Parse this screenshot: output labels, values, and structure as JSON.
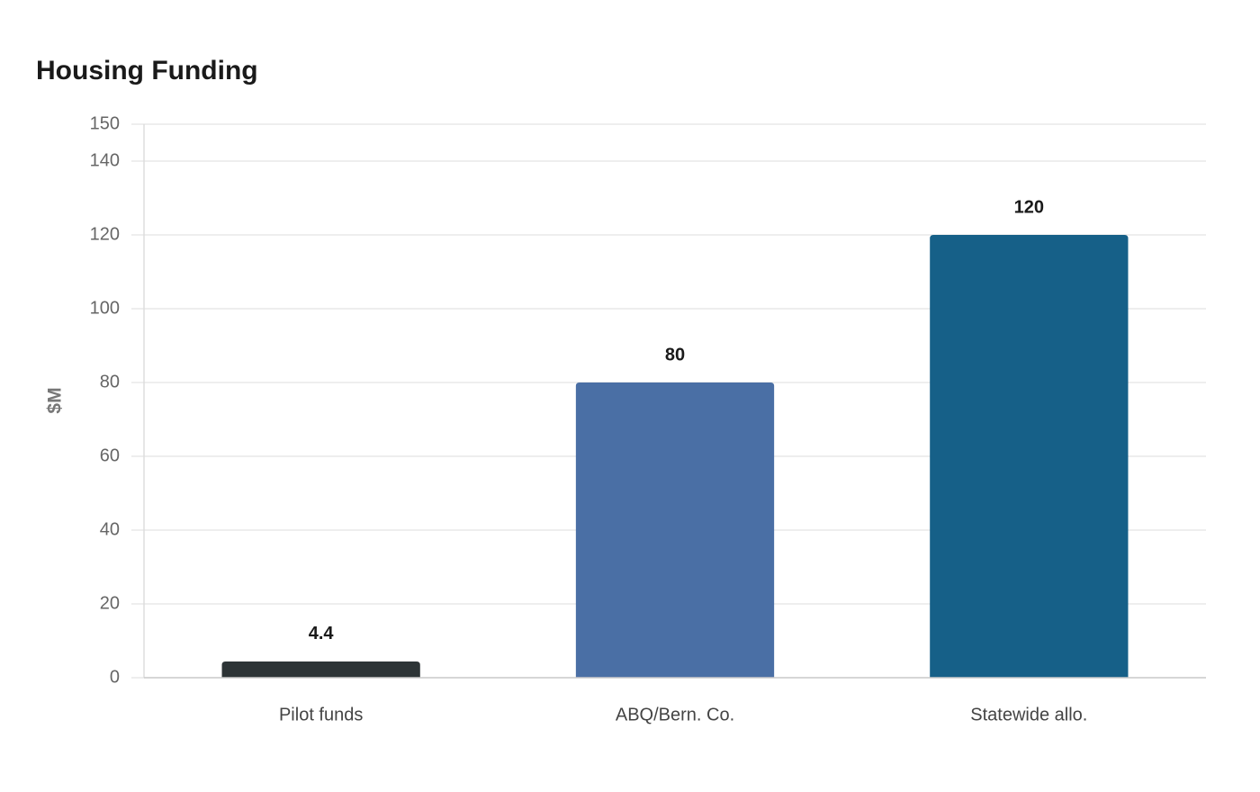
{
  "chart_data": {
    "type": "bar",
    "title": "Housing Funding",
    "y_label": "$M",
    "categories": [
      "Pilot funds",
      "ABQ/Bern. Co.",
      "Statewide allo."
    ],
    "values": [
      4.4,
      80,
      120
    ],
    "colors": [
      "#2d3436",
      "#4a6fa5",
      "#166088"
    ],
    "ylim": [
      0,
      150
    ],
    "yticks": [
      0,
      20,
      40,
      60,
      80,
      100,
      120,
      140,
      150
    ],
    "grid": true
  }
}
